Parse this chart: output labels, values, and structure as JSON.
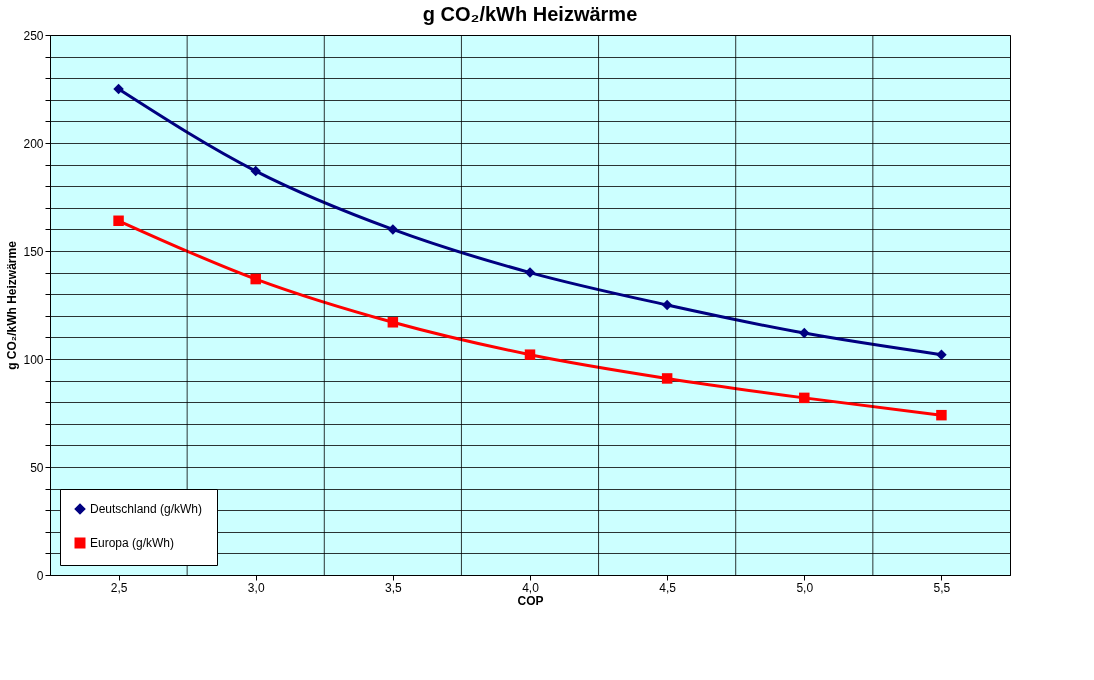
{
  "chart_data": {
    "type": "line",
    "title": "g CO₂/kWh Heizwärme",
    "xlabel": "COP",
    "ylabel": "g CO₂/kWh Heizwärme",
    "categories": [
      "2,5",
      "3,0",
      "3,5",
      "4,0",
      "4,5",
      "5,0",
      "5,5"
    ],
    "series": [
      {
        "name": "Deutschland (g/kWh)",
        "color": "#000080",
        "marker": "diamond",
        "values": [
          225,
          187,
          160,
          140,
          125,
          112,
          102
        ]
      },
      {
        "name": "Europa (g/kWh)",
        "color": "#ff0000",
        "marker": "square",
        "values": [
          164,
          137,
          117,
          102,
          91,
          82,
          74
        ]
      }
    ],
    "ylim": [
      0,
      250
    ],
    "yticks": [
      0,
      {
        "value": 10,
        "label": null
      },
      {
        "value": 20,
        "label": null
      },
      {
        "value": 30,
        "label": null
      },
      {
        "value": 40,
        "label": null
      },
      50,
      {
        "value": 60,
        "label": null
      },
      {
        "value": 70,
        "label": null
      },
      {
        "value": 80,
        "label": null
      },
      {
        "value": 90,
        "label": null
      },
      100,
      {
        "value": 110,
        "label": null
      },
      {
        "value": 120,
        "label": null
      },
      {
        "value": 130,
        "label": null
      },
      {
        "value": 140,
        "label": null
      },
      150,
      {
        "value": 160,
        "label": null
      },
      {
        "value": 170,
        "label": null
      },
      {
        "value": 180,
        "label": null
      },
      {
        "value": 190,
        "label": null
      },
      200,
      {
        "value": 210,
        "label": null
      },
      {
        "value": 220,
        "label": null
      },
      {
        "value": 230,
        "label": null
      },
      {
        "value": 240,
        "label": null
      },
      250
    ],
    "grid": true,
    "legend": "bottom left",
    "line_style": "solid"
  }
}
